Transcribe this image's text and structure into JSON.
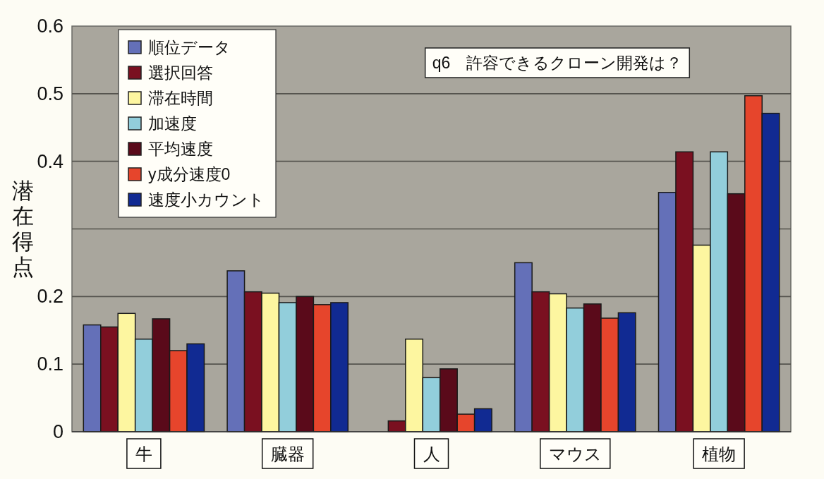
{
  "chart_data": {
    "type": "bar",
    "title": "q6　許容できるクローン開発は？",
    "ylabel": "潜在得点",
    "categories": [
      "牛",
      "臓器",
      "人",
      "マウス",
      "植物"
    ],
    "series": [
      {
        "name": "順位データ",
        "color": "#6470b8",
        "values": [
          0.158,
          0.238,
          0,
          0.25,
          0.354
        ]
      },
      {
        "name": "選択回答",
        "color": "#7a1020",
        "values": [
          0.155,
          0.207,
          0.016,
          0.207,
          0.414
        ]
      },
      {
        "name": "滞在時間",
        "color": "#fdf6a0",
        "values": [
          0.175,
          0.205,
          0.137,
          0.204,
          0.276
        ]
      },
      {
        "name": "加速度",
        "color": "#92cedb",
        "values": [
          0.137,
          0.191,
          0.08,
          0.183,
          0.414
        ]
      },
      {
        "name": "平均速度",
        "color": "#5a0a1a",
        "values": [
          0.167,
          0.2,
          0.093,
          0.189,
          0.352
        ]
      },
      {
        "name": "y成分速度0",
        "color": "#e6452c",
        "values": [
          0.12,
          0.188,
          0.026,
          0.168,
          0.497
        ]
      },
      {
        "name": "速度小カウント",
        "color": "#112a92",
        "values": [
          0.13,
          0.191,
          0.034,
          0.176,
          0.471
        ]
      }
    ],
    "ylim": [
      0,
      0.6
    ],
    "yticks": [
      0,
      0.1,
      0.2,
      {
        "value": 0.3,
        "label": null
      },
      0.4,
      0.5,
      0.6
    ],
    "grid": "y",
    "legend": "top left"
  }
}
